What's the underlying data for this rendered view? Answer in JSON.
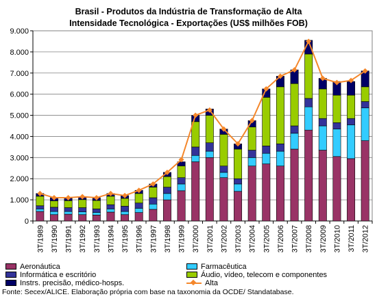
{
  "chart_data": {
    "type": "bar",
    "stacked": true,
    "title": "Brasil - Produtos da Indústria de Transformação de Alta",
    "subtitle": "Intensidade Tecnológica - Exportações (US$ milhões FOB)",
    "categories": [
      "3T/1989",
      "3T/1990",
      "3T/1991",
      "3T/1992",
      "3T/1993",
      "3T/1994",
      "3T/1995",
      "3T/1996",
      "3T/1997",
      "3T/1998",
      "3T/1999",
      "3T/2000",
      "3T/2001",
      "3T/2002",
      "3T/2003",
      "3T/2004",
      "3T/2005",
      "3T/2006",
      "3T/2007",
      "3T/2008",
      "3T/2009",
      "3T/2010",
      "3T/2011",
      "3T/2012"
    ],
    "ylim": [
      0,
      9000
    ],
    "yticks": [
      0,
      1000,
      2000,
      3000,
      4000,
      5000,
      6000,
      7000,
      8000,
      9000
    ],
    "ytick_labels": [
      "0",
      "1.000",
      "2.000",
      "3.000",
      "4.000",
      "5.000",
      "6.000",
      "7.000",
      "8.000",
      "9.000"
    ],
    "grid": true,
    "legend_position": "bottom",
    "series": [
      {
        "name": "Aeronáutica",
        "color": "#993366",
        "values": [
          450,
          300,
          320,
          300,
          280,
          420,
          300,
          400,
          550,
          1000,
          1430,
          2800,
          3000,
          2050,
          1400,
          2600,
          2700,
          2600,
          3400,
          4300,
          3350,
          3050,
          2950,
          3800
        ]
      },
      {
        "name": "Farmacêutica",
        "color": "#33ccff",
        "values": [
          120,
          150,
          130,
          130,
          120,
          150,
          150,
          200,
          250,
          300,
          320,
          300,
          300,
          250,
          350,
          400,
          500,
          700,
          750,
          1100,
          1150,
          1300,
          1600,
          1550
        ]
      },
      {
        "name": "Informática e escritório",
        "color": "#333399",
        "values": [
          150,
          200,
          180,
          200,
          170,
          200,
          250,
          250,
          300,
          300,
          300,
          400,
          400,
          300,
          250,
          350,
          350,
          350,
          350,
          400,
          350,
          300,
          300,
          300
        ]
      },
      {
        "name": "Áudio, vídeo, telecom e componentes",
        "color": "#99cc00",
        "values": [
          450,
          300,
          330,
          380,
          400,
          400,
          370,
          450,
          500,
          500,
          550,
          1200,
          1300,
          1500,
          1400,
          1100,
          2300,
          2700,
          2000,
          2100,
          1400,
          1300,
          1100,
          700
        ]
      },
      {
        "name": "Instrs. precisão, médico-hosps.",
        "color": "#000066",
        "values": [
          130,
          150,
          140,
          140,
          130,
          130,
          130,
          150,
          150,
          200,
          200,
          300,
          300,
          250,
          250,
          300,
          400,
          500,
          650,
          650,
          500,
          650,
          650,
          750
        ]
      }
    ],
    "line": {
      "name": "Alta",
      "color": "#f4872b",
      "values": [
        1300,
        1100,
        1100,
        1150,
        1100,
        1300,
        1200,
        1450,
        1750,
        2300,
        2900,
        5000,
        5250,
        4350,
        3650,
        4750,
        6250,
        6850,
        7150,
        8500,
        6750,
        6550,
        6650,
        7100
      ]
    }
  },
  "source": "Fonte: Secex/ALICE. Elaboração própria com base na taxonomia da OCDE/ Standatabase."
}
